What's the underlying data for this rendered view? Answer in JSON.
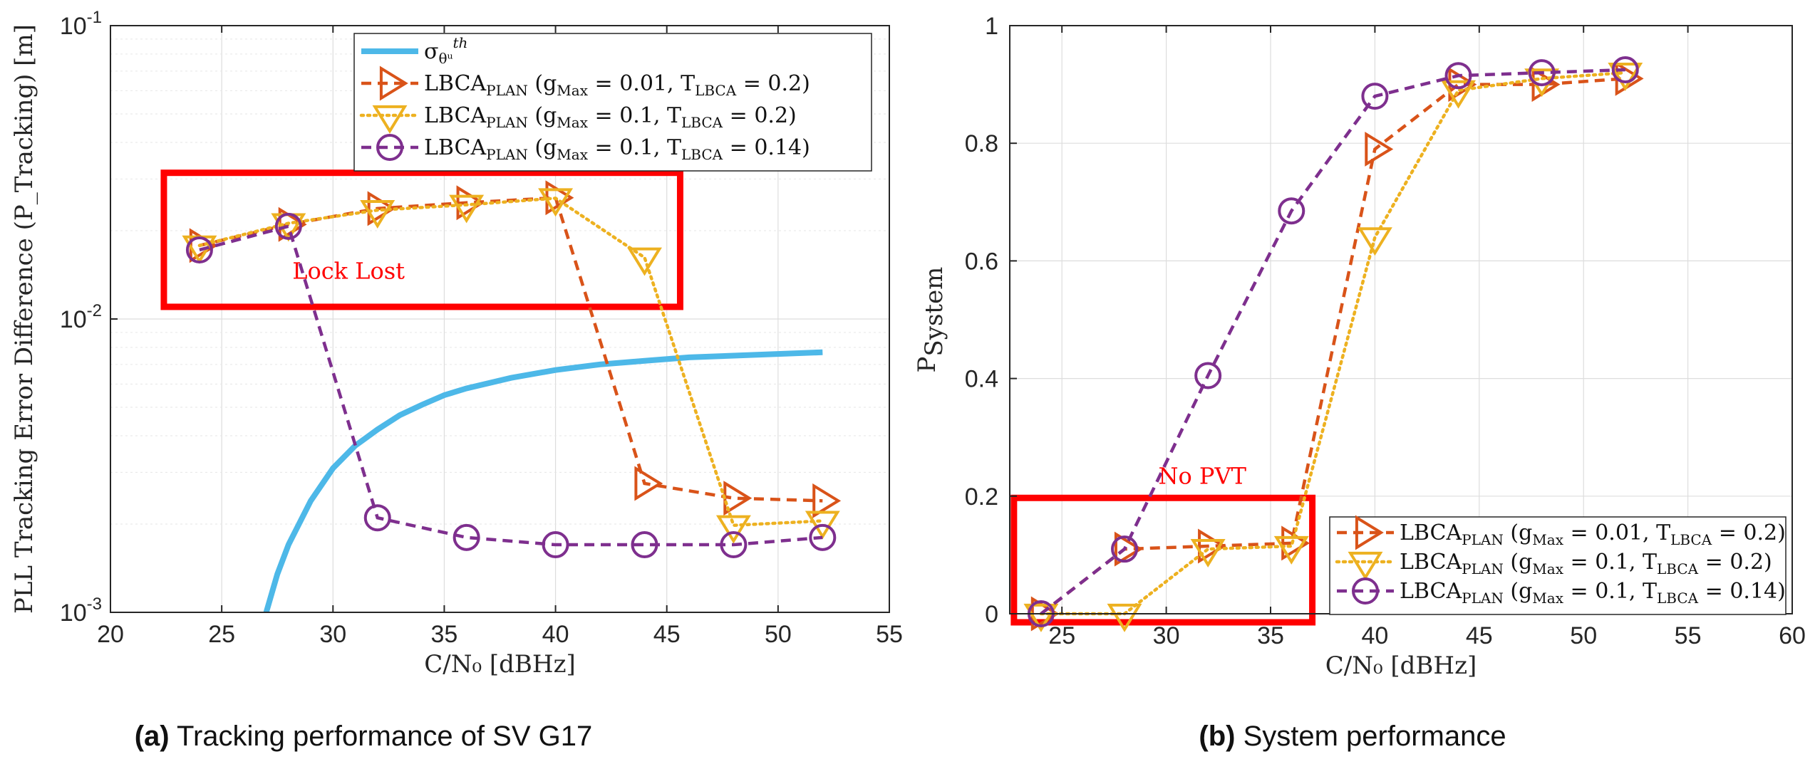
{
  "chart_data": [
    {
      "type": "line",
      "title": "",
      "xlabel": "C/N₀ [dBHz]",
      "ylabel": "PLL Tracking Error Difference (P_Tracking) [m]",
      "yscale": "log",
      "xlim": [
        20,
        55
      ],
      "ylim": [
        0.001,
        0.1
      ],
      "xticks": [
        "20",
        "25",
        "30",
        "35",
        "40",
        "45",
        "50",
        "55"
      ],
      "yticks": [
        {
          "base": "10",
          "exp": "-3"
        },
        {
          "base": "10",
          "exp": "-2"
        },
        {
          "base": "10",
          "exp": "-1"
        }
      ],
      "grid": true,
      "legend_position": "top-right",
      "series": [
        {
          "name": "σ_θu^th",
          "label_main": "σ",
          "label_sub": "θᵘ",
          "label_sup": "th",
          "color": "#4db8e8",
          "style": "solid",
          "marker": "none",
          "x": [
            27,
            27.5,
            28,
            29,
            30,
            31,
            32,
            33,
            34,
            35,
            36,
            38,
            40,
            42,
            44,
            46,
            48,
            50,
            52
          ],
          "values": [
            0.001,
            0.00135,
            0.0017,
            0.0024,
            0.0031,
            0.0037,
            0.0042,
            0.0047,
            0.0051,
            0.0055,
            0.0058,
            0.0063,
            0.0067,
            0.007,
            0.0072,
            0.0074,
            0.0075,
            0.0076,
            0.0077
          ]
        },
        {
          "name": "LBCA_PLAN (g_Max = 0.01, T_LBCA = 0.2)",
          "label_main": "LBCA",
          "label_sub": "PLAN",
          "label_params": " (g",
          "label_p1sub": "Max",
          "label_p1": " = 0.01, T",
          "label_p2sub": "LBCA",
          "label_p2": " = 0.2)",
          "color": "#d95319",
          "style": "dashed",
          "marker": "triangle-right",
          "x": [
            24,
            28,
            32,
            36,
            40,
            44,
            48,
            52
          ],
          "values": [
            0.0178,
            0.021,
            0.0238,
            0.0249,
            0.0259,
            0.00275,
            0.00245,
            0.0024
          ]
        },
        {
          "name": "LBCA_PLAN (g_Max = 0.1, T_LBCA = 0.2)",
          "label_main": "LBCA",
          "label_sub": "PLAN",
          "label_params": " (g",
          "label_p1sub": "Max",
          "label_p1": " = 0.1, T",
          "label_p2sub": "LBCA",
          "label_p2": " = 0.2)",
          "color": "#edb120",
          "style": "dotted",
          "marker": "triangle-down",
          "x": [
            24,
            28,
            32,
            36,
            40,
            44,
            48,
            52
          ],
          "values": [
            0.0178,
            0.0212,
            0.0235,
            0.0245,
            0.0258,
            0.0162,
            0.00198,
            0.00205
          ]
        },
        {
          "name": "LBCA_PLAN (g_Max = 0.1, T_LBCA = 0.14)",
          "label_main": "LBCA",
          "label_sub": "PLAN",
          "label_params": " (g",
          "label_p1sub": "Max",
          "label_p1": " = 0.1, T",
          "label_p2sub": "LBCA",
          "label_p2": " = 0.14)",
          "color": "#7e2f8e",
          "style": "dashed",
          "marker": "circle",
          "x": [
            24,
            28,
            32,
            36,
            40,
            44,
            48,
            52
          ],
          "values": [
            0.0172,
            0.0207,
            0.0021,
            0.0018,
            0.0017,
            0.0017,
            0.0017,
            0.0018
          ]
        }
      ],
      "annotation": {
        "text": "Lock Lost",
        "box_x": [
          22.4,
          45.6
        ],
        "box_y": [
          0.011,
          0.0315
        ]
      },
      "caption": {
        "bold": "(a)",
        "text": " Tracking performance of SV G17"
      }
    },
    {
      "type": "line",
      "title": "",
      "xlabel": "C/N₀ [dBHz]",
      "ylabel_main": "P",
      "ylabel_sub": "System",
      "yscale": "linear",
      "xlim": [
        22.5,
        60
      ],
      "ylim": [
        0,
        1
      ],
      "xticks": [
        "25",
        "30",
        "35",
        "40",
        "45",
        "50",
        "55",
        "60"
      ],
      "yticks": [
        "0",
        "0.2",
        "0.4",
        "0.6",
        "0.8",
        "1"
      ],
      "grid": true,
      "legend_position": "bottom-right",
      "series": [
        {
          "name": "LBCA_PLAN (g_Max = 0.01, T_LBCA = 0.2)",
          "label_main": "LBCA",
          "label_sub": "PLAN",
          "label_params": " (g",
          "label_p1sub": "Max",
          "label_p1": " = 0.01, T",
          "label_p2sub": "LBCA",
          "label_p2": " = 0.2)",
          "color": "#d95319",
          "style": "dashed",
          "marker": "triangle-right",
          "x": [
            24,
            28,
            32,
            36,
            40,
            44,
            48,
            52
          ],
          "values": [
            0,
            0.11,
            0.115,
            0.12,
            0.79,
            0.9,
            0.9,
            0.91
          ]
        },
        {
          "name": "LBCA_PLAN (g_Max = 0.1, T_LBCA = 0.2)",
          "label_main": "LBCA",
          "label_sub": "PLAN",
          "label_params": " (g",
          "label_p1sub": "Max",
          "label_p1": " = 0.1, T",
          "label_p2sub": "LBCA",
          "label_p2": " = 0.2)",
          "color": "#edb120",
          "style": "dotted",
          "marker": "triangle-down",
          "x": [
            24,
            28,
            32,
            36,
            40,
            44,
            48,
            52
          ],
          "values": [
            0,
            0,
            0.11,
            0.115,
            0.64,
            0.89,
            0.91,
            0.92
          ]
        },
        {
          "name": "LBCA_PLAN (g_Max = 0.1, T_LBCA = 0.14)",
          "label_main": "LBCA",
          "label_sub": "PLAN",
          "label_params": " (g",
          "label_p1sub": "Max",
          "label_p1": " = 0.1, T",
          "label_p2sub": "LBCA",
          "label_p2": " = 0.14)",
          "color": "#7e2f8e",
          "style": "dashed",
          "marker": "circle",
          "x": [
            24,
            28,
            32,
            36,
            40,
            44,
            48,
            52
          ],
          "values": [
            0,
            0.11,
            0.405,
            0.685,
            0.88,
            0.915,
            0.92,
            0.925
          ]
        }
      ],
      "annotation": {
        "text": "No PVT",
        "box_x": [
          22.7,
          37
        ],
        "box_y": [
          -0.02,
          0.197
        ]
      },
      "caption": {
        "bold": "(b)",
        "text": " System performance"
      }
    }
  ]
}
